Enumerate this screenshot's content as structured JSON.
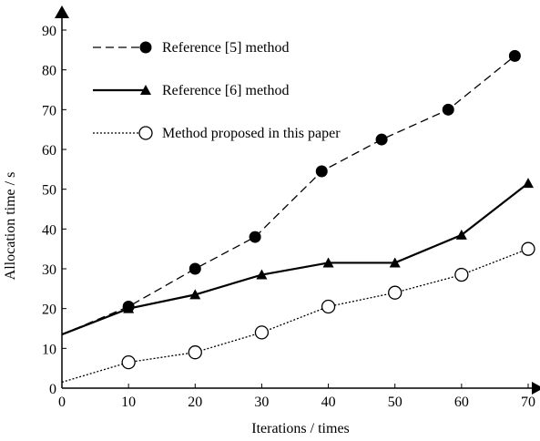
{
  "chart_data": {
    "type": "line",
    "xlabel": "Iterations / times",
    "ylabel": "Allocation time / s",
    "xlim": [
      0,
      70
    ],
    "ylim": [
      0,
      90
    ],
    "x_ticks": [
      "0",
      "10",
      "20",
      "30",
      "40",
      "50",
      "60",
      "70"
    ],
    "y_ticks": [
      "0",
      "10",
      "20",
      "30",
      "40",
      "50",
      "60",
      "70",
      "80",
      "90"
    ],
    "grid": false,
    "legend_position": "top-left",
    "series": [
      {
        "name": "Reference [5] method",
        "line_style": "dashed",
        "marker": "filled-circle",
        "points": [
          {
            "x": 0,
            "y": 13.5,
            "marker": false
          },
          {
            "x": 10,
            "y": 20.5,
            "marker": true
          },
          {
            "x": 20,
            "y": 30,
            "marker": true
          },
          {
            "x": 29,
            "y": 38,
            "marker": true
          },
          {
            "x": 39,
            "y": 54.5,
            "marker": true
          },
          {
            "x": 48,
            "y": 62.5,
            "marker": true
          },
          {
            "x": 58,
            "y": 70,
            "marker": true
          },
          {
            "x": 68,
            "y": 83.5,
            "marker": true
          }
        ]
      },
      {
        "name": "Reference [6] method",
        "line_style": "solid",
        "marker": "filled-triangle",
        "points": [
          {
            "x": 0,
            "y": 13.5,
            "marker": false
          },
          {
            "x": 10,
            "y": 20,
            "marker": true
          },
          {
            "x": 20,
            "y": 23.5,
            "marker": true
          },
          {
            "x": 30,
            "y": 28.5,
            "marker": true
          },
          {
            "x": 40,
            "y": 31.5,
            "marker": true
          },
          {
            "x": 50,
            "y": 31.5,
            "marker": true
          },
          {
            "x": 60,
            "y": 38.5,
            "marker": true
          },
          {
            "x": 70,
            "y": 51.5,
            "marker": true
          }
        ]
      },
      {
        "name": "Method proposed in this paper",
        "line_style": "dotted",
        "marker": "open-circle",
        "points": [
          {
            "x": 0,
            "y": 1.5,
            "marker": false
          },
          {
            "x": 10,
            "y": 6.5,
            "marker": true
          },
          {
            "x": 20,
            "y": 9,
            "marker": true
          },
          {
            "x": 30,
            "y": 14,
            "marker": true
          },
          {
            "x": 40,
            "y": 20.5,
            "marker": true
          },
          {
            "x": 50,
            "y": 24,
            "marker": true
          },
          {
            "x": 60,
            "y": 28.5,
            "marker": true
          },
          {
            "x": 70,
            "y": 35,
            "marker": true
          }
        ]
      }
    ]
  }
}
